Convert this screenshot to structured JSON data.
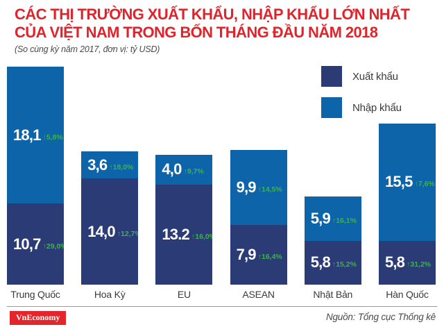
{
  "header": {
    "title_line1": "CÁC THỊ TRƯỜNG XUẤT KHẨU, NHẬP KHẨU LỚN NHẤT",
    "title_line2": "CỦA VIỆT NAM TRONG BỐN THÁNG ĐẦU NĂM 2018",
    "subtitle": "(So cùng kỳ năm 2017, đơn vị: tỷ USD)",
    "title_color": "#E1242B"
  },
  "legend": {
    "items": [
      {
        "label": "Xuất khẩu",
        "color": "#2B3B76"
      },
      {
        "label": "Nhập khẩu",
        "color": "#0E64A8"
      }
    ]
  },
  "chart_data": {
    "type": "bar",
    "stacked": true,
    "title": "CÁC THỊ TRƯỜNG XUẤT KHẨU, NHẬP KHẨU LỚN NHẤT CỦA VIỆT NAM TRONG BỐN THÁNG ĐẦU NĂM 2018",
    "subtitle": "(So cùng kỳ năm 2017, đơn vị: tỷ USD)",
    "unit": "tỷ USD",
    "legend_position": "top-right",
    "grid": false,
    "arrow": "↑",
    "value_color": "#FFFFFF",
    "growth_color": "#3CB44A",
    "categories": [
      "Trung Quốc",
      "Hoa Kỳ",
      "EU",
      "ASEAN",
      "Nhật Bản",
      "Hàn Quốc"
    ],
    "series": [
      {
        "name": "Xuất khẩu",
        "color": "#2B3B76",
        "values": [
          10.7,
          14.0,
          13.2,
          7.9,
          5.8,
          5.8
        ],
        "labels": [
          "10,7",
          "14,0",
          "13.2",
          "7,9",
          "5,8",
          "5,8"
        ],
        "growth": [
          "29,0%",
          "12,7%",
          "16,0%",
          "16,4%",
          "15,2%",
          "31,2%"
        ]
      },
      {
        "name": "Nhập khẩu",
        "color": "#0E64A8",
        "values": [
          18.1,
          3.6,
          4.0,
          9.9,
          5.9,
          15.5
        ],
        "labels": [
          "18,1",
          "3,6",
          "4,0",
          "9,9",
          "5,9",
          "15,5"
        ],
        "growth": [
          "5,8%",
          "18,0%",
          "9,7%",
          "14,5%",
          "16,1%",
          "7,6%"
        ]
      }
    ]
  },
  "footer": {
    "logo_text": "VnEconomy",
    "logo_bg": "#E3262B",
    "source_text": "Nguồn: Tổng cục Thống kê"
  }
}
